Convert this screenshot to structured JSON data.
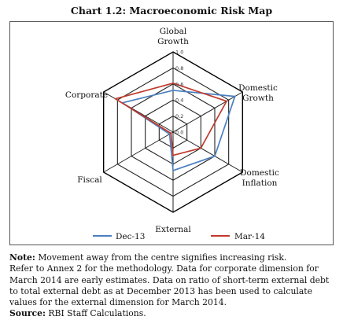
{
  "chart_data": {
    "type": "radar",
    "title": "Chart 1.2: Macroeconomic Risk Map",
    "axes": [
      [
        "Global",
        "Growth"
      ],
      [
        "Domestic",
        "Growth"
      ],
      [
        "Domestic",
        "Inflation"
      ],
      [
        "External"
      ],
      [
        "Fiscal"
      ],
      [
        "Corporate"
      ]
    ],
    "range": [
      0,
      1.0
    ],
    "ticks": [
      "0.0",
      "0.2",
      "0.4",
      "0.6",
      "0.8",
      "1.0"
    ],
    "tick_values": [
      0,
      0.2,
      0.4,
      0.6,
      0.8,
      1.0
    ],
    "grid": true,
    "legend_position": "bottom",
    "series": [
      {
        "name": "Dec-13",
        "color": "#4a7fc1",
        "values": [
          0.52,
          0.89,
          0.6,
          0.48,
          0.05,
          0.73
        ]
      },
      {
        "name": "Mar-14",
        "color": "#c0392b",
        "values": [
          0.61,
          0.77,
          0.4,
          0.29,
          0.03,
          0.83
        ]
      }
    ]
  },
  "notes": {
    "note_label": "Note:",
    "note_lines": [
      " Movement away from the centre signifies increasing risk.",
      "Refer to Annex 2 for the methodology. Data for corporate dimension for",
      "March 2014 are early estimates. Data on ratio of short-term external debt",
      "to total external debt as at  December 2013 has been used to calculate",
      "values for the external dimension for March 2014."
    ],
    "source_label": "Source:",
    "source_text": " RBI Staff Calculations."
  }
}
